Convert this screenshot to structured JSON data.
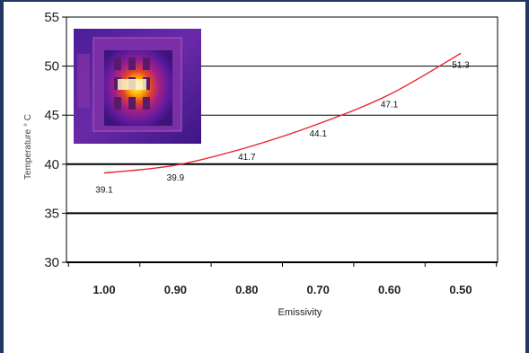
{
  "chart_data": {
    "type": "line",
    "title": "",
    "xlabel": "Emissivity",
    "ylabel": "Temperature ° C",
    "x": [
      1.0,
      0.9,
      0.8,
      0.7,
      0.6,
      0.5
    ],
    "x_tick_labels": [
      "1.00",
      "0.90",
      "0.80",
      "0.70",
      "0.60",
      "0.50"
    ],
    "x_reversed": true,
    "ylim": [
      30,
      55
    ],
    "y_ticks": [
      "30",
      "35",
      "40",
      "45",
      "50",
      "55"
    ],
    "series": [
      {
        "values": [
          39.1,
          39.9,
          41.7,
          44.1,
          47.1,
          51.3
        ],
        "data_labels": [
          "39.1",
          "39.9",
          "41.7",
          "44.1",
          "47.1",
          "51.3"
        ],
        "color": "#e8262b"
      }
    ],
    "grid": "horizontal",
    "legend": "none",
    "inset_image": "thermal-camera-image-of-electrical-panel"
  }
}
